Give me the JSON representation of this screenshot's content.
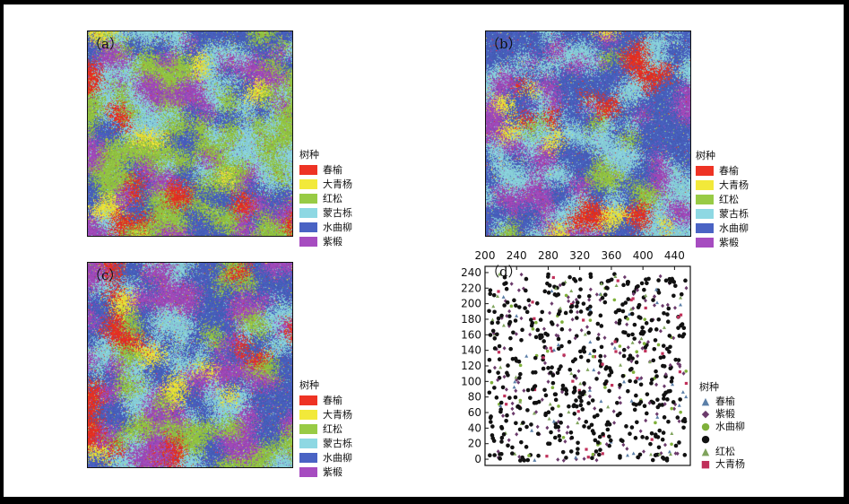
{
  "chart_data": [
    {
      "type": "heatmap",
      "panel_label": "（a）",
      "legend_title": "树种",
      "categories": [
        "春榆",
        "大青杨",
        "红松",
        "蒙古栎",
        "水曲柳",
        "紫椴"
      ],
      "colors": [
        "#ee3324",
        "#f2e93a",
        "#98cb45",
        "#8ed8e3",
        "#4a63c4",
        "#a64cc0"
      ],
      "category_proportions": [
        0.06,
        0.03,
        0.38,
        0.22,
        0.14,
        0.17
      ]
    },
    {
      "type": "heatmap",
      "panel_label": "（b）",
      "legend_title": "树种",
      "categories": [
        "春榆",
        "大青杨",
        "红松",
        "蒙古栎",
        "水曲柳",
        "紫椴"
      ],
      "colors": [
        "#ee3324",
        "#f2e93a",
        "#98cb45",
        "#8ed8e3",
        "#4a63c4",
        "#a64cc0"
      ],
      "category_proportions": [
        0.07,
        0.06,
        0.05,
        0.27,
        0.35,
        0.2
      ]
    },
    {
      "type": "heatmap",
      "panel_label": "（c）",
      "legend_title": "树种",
      "categories": [
        "春榆",
        "大青杨",
        "红松",
        "蒙古栎",
        "水曲柳",
        "紫椴"
      ],
      "colors": [
        "#ee3324",
        "#f2e93a",
        "#98cb45",
        "#8ed8e3",
        "#4a63c4",
        "#a64cc0"
      ],
      "category_proportions": [
        0.08,
        0.07,
        0.14,
        0.2,
        0.25,
        0.26
      ]
    },
    {
      "type": "scatter",
      "panel_label": "（d）",
      "legend_title": "树种",
      "xlim": [
        200,
        460
      ],
      "ylim": [
        -8,
        248
      ],
      "x_ticks": [
        200,
        240,
        280,
        320,
        360,
        400,
        440
      ],
      "y_ticks": [
        0,
        20,
        40,
        60,
        80,
        100,
        120,
        140,
        160,
        180,
        200,
        220,
        240
      ],
      "x_axis_position": "top",
      "grid": false,
      "n_points_approx": 800,
      "series": [
        {
          "name": "春榆",
          "marker": "▲",
          "color": "#5b7fa8"
        },
        {
          "name": "紫椴",
          "marker": "◆",
          "color": "#6b3a6b"
        },
        {
          "name": "水曲柳",
          "marker": "●",
          "color": "#7fb03a"
        },
        {
          "name": "",
          "marker": "●",
          "color": "#111111"
        },
        {
          "name": "红松",
          "marker": "▲",
          "color": "#7fa35c"
        },
        {
          "name": "大青杨",
          "marker": "■",
          "color": "#c0305a"
        }
      ],
      "legend_labels": [
        "春榆",
        "紫椴",
        "水曲柳",
        "",
        "红松",
        "大青杨"
      ]
    }
  ]
}
